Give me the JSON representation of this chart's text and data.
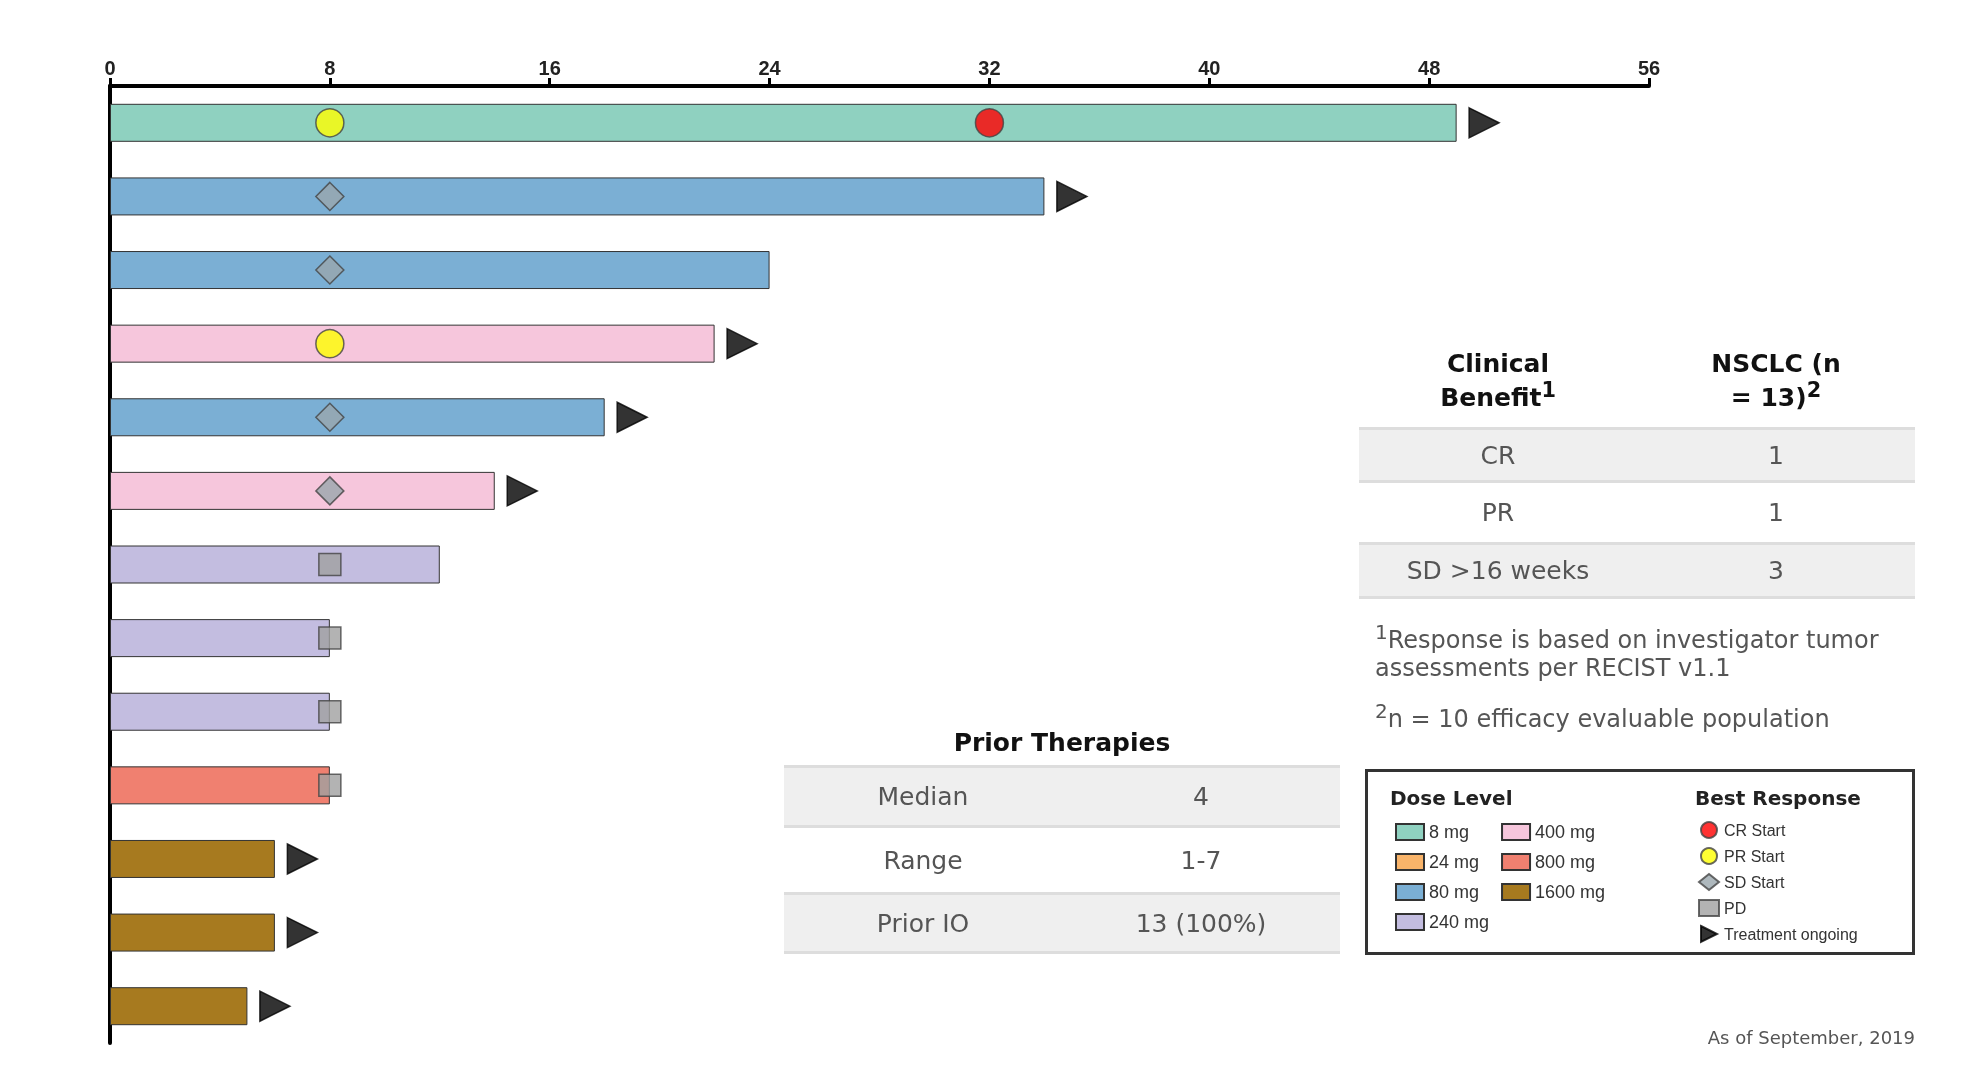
{
  "chart_data": {
    "type": "bar",
    "orientation": "horizontal",
    "stacked": true,
    "categories": [
      null,
      null,
      null,
      null,
      null,
      null,
      null,
      null,
      null,
      null,
      null,
      null,
      null
    ],
    "xlim": [
      0,
      56
    ],
    "xticks": [
      0,
      8,
      16,
      24,
      32,
      40,
      48,
      56
    ],
    "tick_labels": "x",
    "grid": false,
    "legend": "bottom right",
    "legend_title": [
      "Dose Level",
      "Best Response"
    ],
    "series": [
      {
        "name": "8 mg",
        "color": "#8fd1c0",
        "values": [
          49,
          null,
          null,
          null,
          null,
          null,
          null,
          null,
          null,
          null,
          null,
          null,
          null
        ]
      },
      {
        "name": "24 mg",
        "color": "#f9b46a",
        "values": [
          null,
          null,
          null,
          null,
          null,
          null,
          null,
          null,
          null,
          null,
          null,
          null,
          null
        ]
      },
      {
        "name": "80 mg",
        "color": "#7bafd4",
        "values": [
          null,
          34,
          24,
          null,
          18,
          null,
          null,
          null,
          null,
          null,
          null,
          null,
          null
        ]
      },
      {
        "name": "240 mg",
        "color": "#c3bde0",
        "values": [
          null,
          null,
          null,
          null,
          null,
          null,
          12,
          8,
          8,
          null,
          null,
          null,
          null
        ]
      },
      {
        "name": "400 mg",
        "color": "#f6c6dc",
        "values": [
          null,
          null,
          null,
          22,
          null,
          14,
          null,
          null,
          null,
          null,
          null,
          null,
          null
        ]
      },
      {
        "name": "800 mg",
        "color": "#f08070",
        "values": [
          null,
          null,
          null,
          null,
          null,
          null,
          null,
          null,
          null,
          8,
          null,
          null,
          null
        ]
      },
      {
        "name": "1600 mg",
        "color": "#a77a1f",
        "values": [
          null,
          null,
          null,
          null,
          null,
          null,
          null,
          null,
          null,
          null,
          6,
          6,
          5
        ]
      },
      {
        "name": "CR Start",
        "type": "scatter",
        "marker": "circle",
        "color": "#ff0000",
        "values": [
          32,
          null,
          null,
          null,
          null,
          null,
          null,
          null,
          null,
          null,
          null,
          null,
          null
        ]
      },
      {
        "name": "PR Start",
        "type": "scatter",
        "marker": "circle",
        "color": "#ffff00",
        "values": [
          8,
          null,
          null,
          8,
          null,
          null,
          null,
          null,
          null,
          null,
          null,
          null,
          null
        ]
      },
      {
        "name": "SD Start",
        "type": "scatter",
        "marker": "diamond",
        "color": "#9aa6ad",
        "values": [
          null,
          8,
          8,
          null,
          8,
          8,
          null,
          null,
          null,
          null,
          null,
          null,
          null
        ]
      },
      {
        "name": "PD",
        "type": "scatter",
        "marker": "square",
        "color": "#a0a0a0",
        "values": [
          null,
          null,
          null,
          null,
          null,
          null,
          8,
          8,
          8,
          8,
          null,
          null,
          null
        ]
      },
      {
        "name": "Treatment ongoing",
        "type": "scatter",
        "marker": "triangle",
        "color": "#000000",
        "values": [
          50,
          35,
          null,
          23,
          19,
          15,
          null,
          null,
          null,
          null,
          7,
          7,
          6
        ]
      }
    ],
    "annotations": [
      "Clinical Benefit$^{1}$",
      "NSCLC (n = 13)$^{2}$",
      "CR",
      "1",
      "PR",
      "1",
      "SD >16 weeks",
      "3",
      "$^{1}$Response is based on investigator  tumor assessments per RECIST v1.1",
      "$^{2}$n = 10 efficacy evaluable population",
      "Prior Therapies",
      "Median",
      "4",
      "Range",
      "1-7",
      "Prior IO",
      "13 (100%)",
      "As of September, 2019"
    ]
  }
}
